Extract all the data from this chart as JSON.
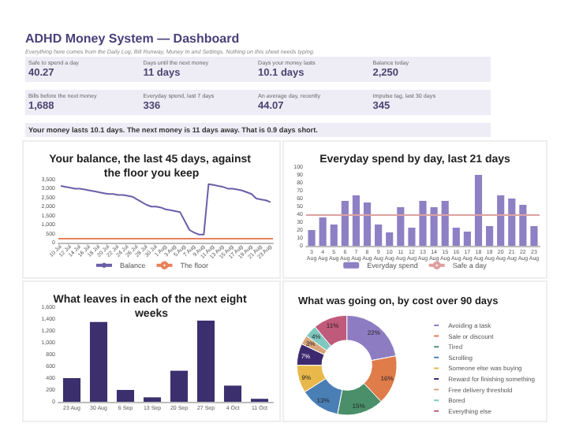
{
  "chart_data": [
    {
      "type": "other",
      "title": "ADHD Money System — Dashboard",
      "subtitle": "Everything here comes from the Daily Log, Bill Runway, Money In and Settings. Nothing on this sheet needs typing.",
      "annotations": [
        "Safe to spend a day",
        "40.27",
        "Days until the next money",
        "11 days",
        "Days your money lasts",
        "10.1 days",
        "Balance today",
        "2,250",
        "Bills before the next money",
        "1,688",
        "Everyday spend, last 7 days",
        "336",
        "An average day, recently",
        "44.07",
        "Impulse tag, last 30 days",
        "345",
        "Your money lasts 10.1 days. The next money is 11 days away. That is 0.9 days short."
      ]
    },
    {
      "type": "line",
      "title": "Your balance, the last 45 days, against the floor you keep",
      "categories": [
        "10 Jul",
        null,
        "12 Jul",
        null,
        "14 Jul",
        null,
        "16 Jul",
        null,
        "18 Jul",
        null,
        "20 Jul",
        null,
        "22 Jul",
        null,
        "24 Jul",
        null,
        "26 Jul",
        null,
        "28 Jul",
        null,
        "30 Jul",
        null,
        "1 Aug",
        null,
        "3 Aug",
        null,
        "5 Aug",
        null,
        "7 Aug",
        null,
        "9 Aug",
        null,
        "11 Aug",
        null,
        "13 Aug",
        null,
        "15 Aug",
        null,
        "17 Aug",
        null,
        "19 Aug",
        null,
        "21 Aug",
        null,
        "23 Aug"
      ],
      "series": [
        {
          "name": "Balance",
          "color": "#6a5fa8",
          "values": [
            3150,
            3100,
            3050,
            3000,
            3000,
            2950,
            2900,
            2850,
            2800,
            2750,
            2700,
            2700,
            2650,
            2650,
            2600,
            2550,
            2400,
            2250,
            2100,
            2000,
            2000,
            1950,
            1850,
            1800,
            1750,
            1700,
            1200,
            700,
            550,
            450,
            450,
            3250,
            3200,
            3150,
            3100,
            3000,
            3000,
            2950,
            2900,
            2800,
            2700,
            2450,
            2400,
            2350,
            2250
          ]
        }
      ],
      "ref_lines": [
        {
          "axis": "y",
          "value": 200,
          "label": "The floor",
          "color": "#e8825a"
        }
      ],
      "ylim": [
        0,
        3500
      ],
      "yticks": [
        0,
        500,
        {
          "value": 1000,
          "label": "1,000"
        },
        {
          "value": 1500,
          "label": "1,500"
        },
        {
          "value": 2000,
          "label": "2,000"
        },
        {
          "value": 2500,
          "label": "2,500"
        },
        {
          "value": 3000,
          "label": "3,000"
        },
        {
          "value": 3500,
          "label": "3,500"
        }
      ],
      "legend": "bottom"
    },
    {
      "type": "bar",
      "title": "Everyday spend by day, last 21 days",
      "categories": [
        "3 Aug",
        "4 Aug",
        "5 Aug",
        "6 Aug",
        "7 Aug",
        "8 Aug",
        "9 Aug",
        "10 Aug",
        "11 Aug",
        "12 Aug",
        "13 Aug",
        "14 Aug",
        "15 Aug",
        "16 Aug",
        "17 Aug",
        "18 Aug",
        "19 Aug",
        "20 Aug",
        "21 Aug",
        "22 Aug",
        "23 Aug"
      ],
      "series": [
        {
          "name": "Everyday spend",
          "color": "#8e80c4",
          "values": [
            20,
            36,
            27,
            57,
            64,
            55,
            27,
            17,
            49,
            23,
            57,
            49,
            57,
            23,
            18,
            90,
            25,
            64,
            60,
            52,
            25
          ]
        }
      ],
      "ref_lines": [
        {
          "axis": "y",
          "value": 40.27,
          "label": "Safe a day",
          "color": "#e0a0a0"
        }
      ],
      "ylim": [
        0,
        100
      ],
      "yticks": [
        0,
        10,
        20,
        30,
        40,
        50,
        60,
        70,
        80,
        90,
        100
      ],
      "legend": "bottom"
    },
    {
      "type": "bar",
      "title": "What leaves in each of the next eight weeks",
      "categories": [
        "23 Aug",
        "30 Aug",
        "6 Sep",
        "13 Sep",
        "20 Sep",
        "27 Sep",
        "4 Oct",
        "11 Oct"
      ],
      "values": [
        400,
        1350,
        200,
        75,
        525,
        1375,
        275,
        50
      ],
      "color": "#3b2f6e",
      "ylim": [
        0,
        1600
      ],
      "yticks": [
        0,
        200,
        400,
        600,
        800,
        {
          "value": 1000,
          "label": "1,000"
        },
        {
          "value": 1200,
          "label": "1,200"
        },
        {
          "value": 1400,
          "label": "1,400"
        },
        {
          "value": 1600,
          "label": "1,600"
        }
      ]
    },
    {
      "type": "donut",
      "title": "What was going on, by cost over 90 days",
      "categories": [
        "Avoiding a task",
        "Sale or discount",
        "Tired",
        "Scrolling",
        "Someone else was buying",
        "Reward for finishing something",
        "Free delivery threshold",
        "Bored",
        "Everything else"
      ],
      "values": [
        22,
        16,
        15,
        13,
        9,
        7,
        3,
        4,
        11
      ],
      "value_labels": [
        "22%",
        "16%",
        "15%",
        "13%",
        "9%",
        "7%",
        "3%",
        "4%",
        "11%"
      ],
      "colors": [
        "#8e7cc3",
        "#e07b4a",
        "#4a8f6a",
        "#4a7fb5",
        "#e8b84a",
        "#3d2a6e",
        "#d9a57a",
        "#7fc8c0",
        "#c05a7a"
      ],
      "legend": "right"
    }
  ]
}
